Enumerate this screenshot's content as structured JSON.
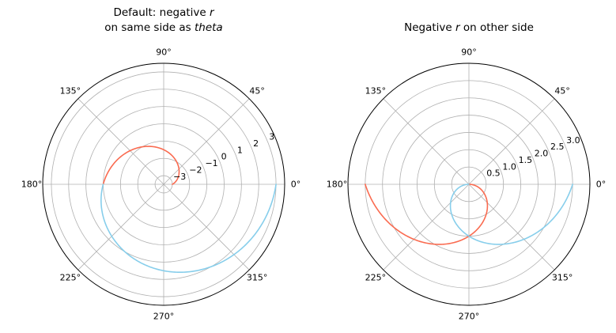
{
  "chart_data": [
    {
      "type": "line",
      "projection": "polar",
      "title_lines": [
        {
          "text": "Default: negative ",
          "italic": "r"
        },
        {
          "text": "on same side as ",
          "italic": "theta"
        }
      ],
      "theta_tick_labels": [
        "0°",
        "45°",
        "90°",
        "135°",
        "180°",
        "225°",
        "270°",
        "315°"
      ],
      "r_lim": [
        -3.5,
        3.5
      ],
      "r_ticks": [
        -3,
        -2,
        -1,
        0,
        1,
        2,
        3
      ],
      "r_tick_labels": [
        "−3",
        "−2",
        "−1",
        "0",
        "1",
        "2",
        "3"
      ],
      "r_label_angle_deg": 22.5,
      "negative_r_flipped": false,
      "grid": true,
      "series": [
        {
          "theta_range_deg": [
            0,
            180
          ],
          "r_range": [
            -3,
            0
          ],
          "color": "#fa6b50"
        },
        {
          "theta_range_deg": [
            180,
            360
          ],
          "r_range": [
            0,
            3
          ],
          "color": "#87ceeb"
        }
      ]
    },
    {
      "type": "line",
      "projection": "polar",
      "title_lines": [
        {
          "text": "Negative ",
          "italic": "r",
          "after": " on other side"
        }
      ],
      "theta_tick_labels": [
        "0°",
        "45°",
        "90°",
        "135°",
        "180°",
        "225°",
        "270°",
        "315°"
      ],
      "r_lim": [
        0,
        3.5
      ],
      "r_ticks": [
        0.5,
        1.0,
        1.5,
        2.0,
        2.5,
        3.0
      ],
      "r_tick_labels": [
        "0.5",
        "1.0",
        "1.5",
        "2.0",
        "2.5",
        "3.0"
      ],
      "r_label_angle_deg": 22.5,
      "negative_r_flipped": true,
      "grid": true,
      "series": [
        {
          "theta_range_deg": [
            0,
            180
          ],
          "r_range": [
            -3,
            0
          ],
          "color": "#fa6b50"
        },
        {
          "theta_range_deg": [
            180,
            360
          ],
          "r_range": [
            0,
            3
          ],
          "color": "#87ceeb"
        }
      ]
    }
  ]
}
